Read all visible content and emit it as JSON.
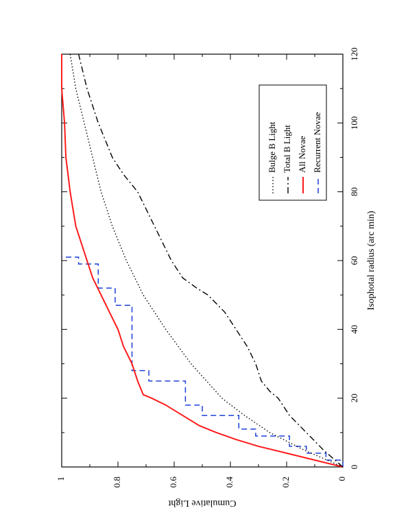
{
  "chart_data": {
    "type": "line",
    "orientation": "rotated 90 degrees clockwise",
    "xlabel": "Isophotal radius (arc min)",
    "ylabel": "Cumulative Light",
    "xlim": [
      0,
      120
    ],
    "ylim": [
      0,
      1
    ],
    "x_ticks": [
      "0",
      "20",
      "40",
      "60",
      "80",
      "100",
      "120"
    ],
    "y_ticks": [
      "0",
      "0.2",
      "0.4",
      "0.6",
      "0.8",
      "1"
    ],
    "legend_position": "upper-right of plot area",
    "series": [
      {
        "name": "Recurrent Novae",
        "style": "dashed-step",
        "color": "#1a3fd6",
        "x": [
          0,
          2,
          4,
          6,
          9,
          11,
          15,
          18,
          25,
          28,
          41,
          47,
          52,
          59,
          61
        ],
        "y": [
          0,
          0.06,
          0.13,
          0.19,
          0.31,
          0.37,
          0.5,
          0.56,
          0.69,
          0.75,
          0.75,
          0.81,
          0.87,
          0.94,
          1.0
        ]
      },
      {
        "name": "All Novae",
        "style": "solid",
        "color": "#ff1a1a",
        "x": [
          0,
          2,
          4,
          6,
          8,
          10,
          12,
          15,
          18,
          20,
          21,
          25,
          30,
          35,
          40,
          45,
          50,
          55,
          60,
          65,
          70,
          80,
          90,
          100,
          110,
          120
        ],
        "y": [
          0,
          0.1,
          0.2,
          0.3,
          0.38,
          0.45,
          0.51,
          0.57,
          0.63,
          0.68,
          0.71,
          0.73,
          0.75,
          0.78,
          0.8,
          0.83,
          0.86,
          0.89,
          0.91,
          0.93,
          0.95,
          0.97,
          0.985,
          0.99,
          1.0,
          1.0
        ]
      },
      {
        "name": "Total B Light",
        "style": "dash-dot",
        "color": "#000000",
        "x": [
          0,
          5,
          10,
          15,
          20,
          22,
          25,
          30,
          35,
          40,
          45,
          50,
          52,
          55,
          60,
          70,
          80,
          85,
          90,
          100,
          110,
          120
        ],
        "y": [
          0,
          0.07,
          0.13,
          0.19,
          0.23,
          0.26,
          0.29,
          0.31,
          0.34,
          0.38,
          0.42,
          0.48,
          0.52,
          0.57,
          0.61,
          0.67,
          0.73,
          0.78,
          0.82,
          0.87,
          0.91,
          0.94
        ]
      },
      {
        "name": "Bulge B Light",
        "style": "dotted",
        "color": "#000000",
        "x": [
          0,
          5,
          10,
          15,
          20,
          30,
          40,
          50,
          60,
          70,
          80,
          90,
          100,
          110,
          120
        ],
        "y": [
          0,
          0.14,
          0.26,
          0.35,
          0.43,
          0.54,
          0.63,
          0.71,
          0.77,
          0.82,
          0.86,
          0.89,
          0.92,
          0.95,
          0.97
        ]
      }
    ]
  }
}
